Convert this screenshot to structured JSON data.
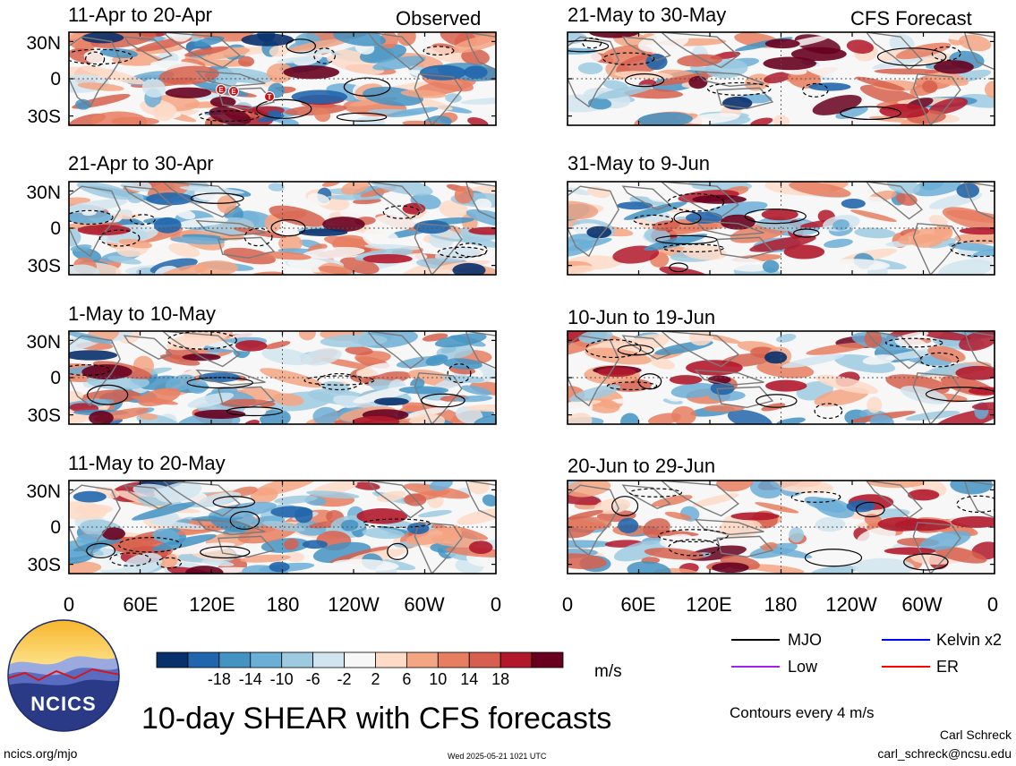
{
  "header": {
    "observed_label": "Observed",
    "forecast_label": "CFS Forecast"
  },
  "panels_observed": [
    {
      "title": "11-Apr to 20-Apr"
    },
    {
      "title": "21-Apr to 30-Apr"
    },
    {
      "title": "1-May to 10-May"
    },
    {
      "title": "11-May to 20-May"
    }
  ],
  "panels_forecast": [
    {
      "title": "21-May to 30-May"
    },
    {
      "title": "31-May to 9-Jun"
    },
    {
      "title": "10-Jun to 19-Jun"
    },
    {
      "title": "20-Jun to 29-Jun"
    }
  ],
  "y_ticks": [
    "30N",
    "0",
    "30S"
  ],
  "x_ticks": [
    "0",
    "60E",
    "120E",
    "180",
    "120W",
    "60W",
    "0"
  ],
  "storm_markers": [
    "E",
    "E",
    "T"
  ],
  "colorbar": {
    "labels": [
      "-18",
      "-14",
      "-10",
      "-6",
      "-2",
      "2",
      "6",
      "10",
      "14",
      "18"
    ],
    "colors": [
      "#08306b",
      "#2166ac",
      "#4393c3",
      "#6baed6",
      "#9ecae1",
      "#d1e5f0",
      "#f7f7f7",
      "#fddbc7",
      "#f4a582",
      "#e67e60",
      "#d6604d",
      "#b2182b",
      "#67001f"
    ],
    "unit": "m/s"
  },
  "legend": {
    "items": [
      {
        "label": "MJO",
        "color": "#000000"
      },
      {
        "label": "Kelvin x2",
        "color": "#0000ff"
      },
      {
        "label": "Low",
        "color": "#a020f0"
      },
      {
        "label": "ER",
        "color": "#ff0000"
      }
    ],
    "contour_note": "Contours every 4 m/s"
  },
  "logo": {
    "text": "NCICS"
  },
  "main_title": "10-day SHEAR with CFS forecasts",
  "footer": {
    "url": "ncics.org/mjo",
    "timestamp": "Wed 2025-05-21 1021 UTC",
    "author": "Carl Schreck",
    "email": "carl_schreck@ncsu.edu"
  }
}
